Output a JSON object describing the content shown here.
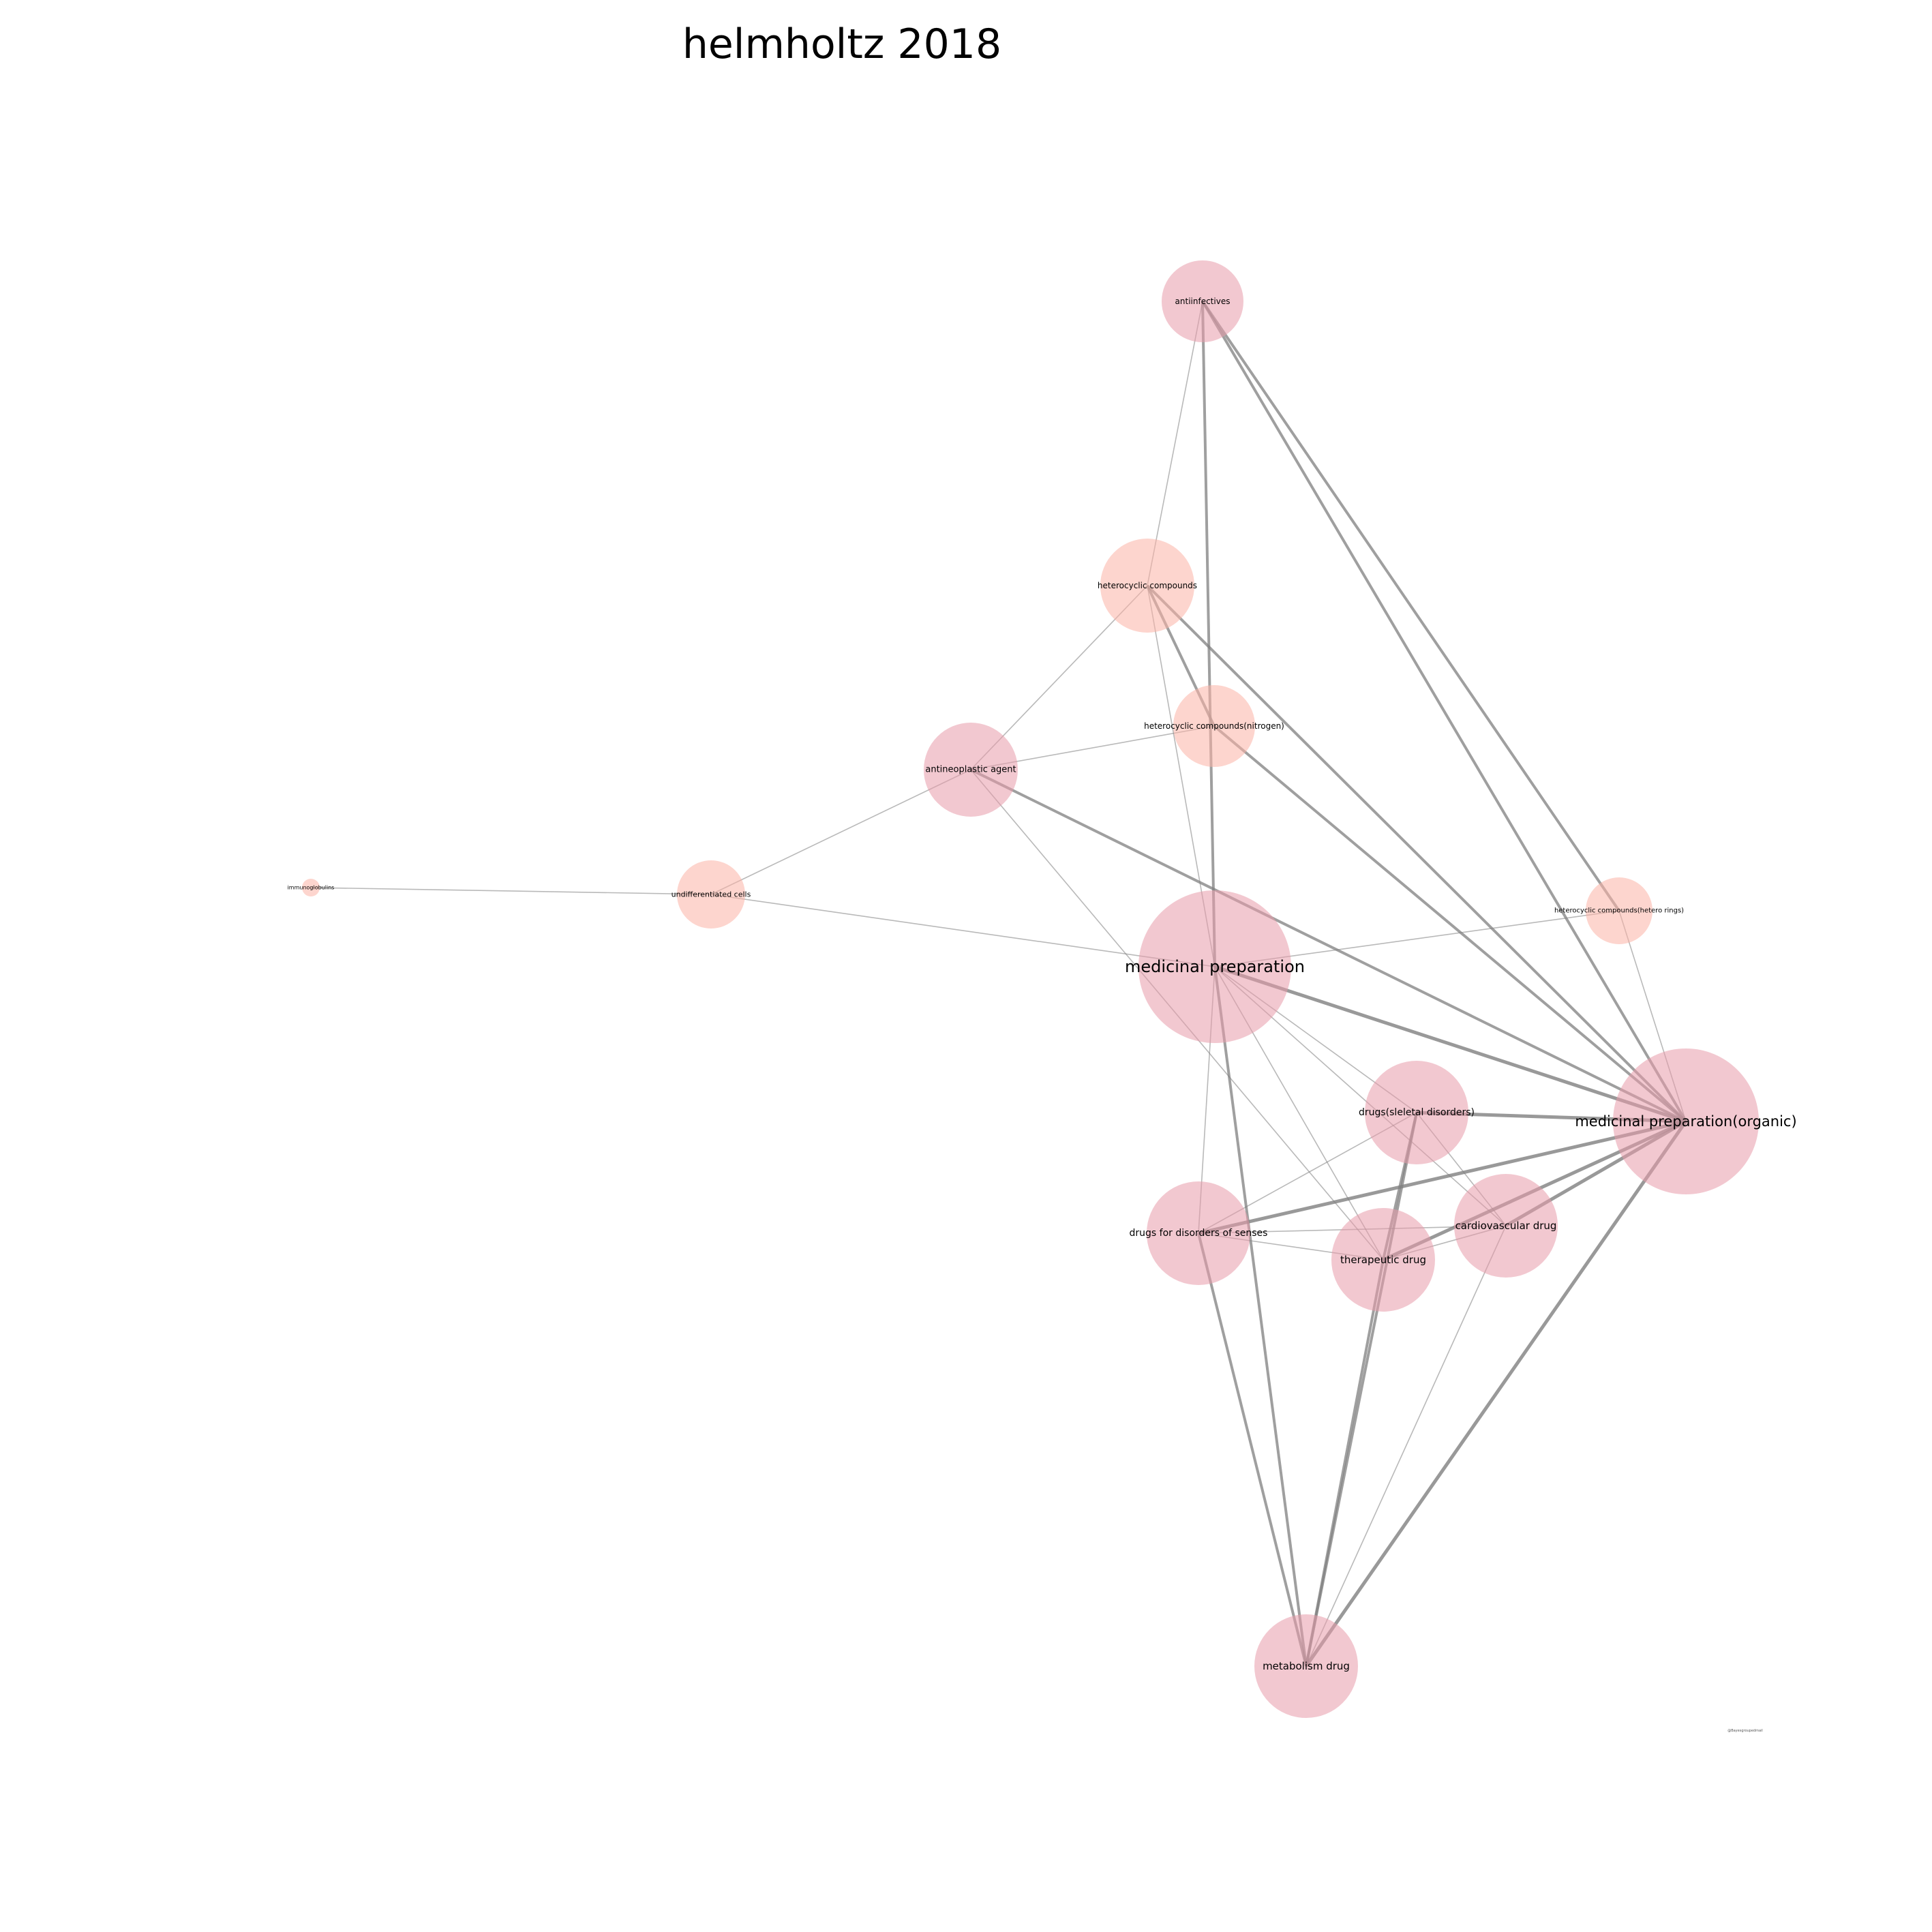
{
  "title": "helmholtz 2018",
  "watermark": "@Bayesgroupedmail",
  "colors": {
    "node_pink": "#e79aaa",
    "node_salmon": "#fcb3a6",
    "edge": "#7f7f7f",
    "background": "#ffffff"
  },
  "nodes": [
    {
      "id": "antiinfectives",
      "label": "antiinfectives",
      "color": "node_pink"
    },
    {
      "id": "heterocyclic_compounds",
      "label": "heterocyclic compounds",
      "color": "node_salmon"
    },
    {
      "id": "heterocyclic_nitrogen",
      "label": "heterocyclic compounds(nitrogen)",
      "color": "node_salmon"
    },
    {
      "id": "antineoplastic",
      "label": "antineoplastic agent",
      "color": "node_pink"
    },
    {
      "id": "immunoglobulins",
      "label": "immunoglobulins",
      "color": "node_salmon"
    },
    {
      "id": "undifferentiated",
      "label": "undifferentiated cells",
      "color": "node_salmon"
    },
    {
      "id": "hetero_rings",
      "label": "heterocyclic compounds(hetero rings)",
      "color": "node_salmon"
    },
    {
      "id": "medicinal",
      "label": "medicinal preparation",
      "color": "node_pink"
    },
    {
      "id": "medicinal_organic",
      "label": "medicinal preparation(organic)",
      "color": "node_pink"
    },
    {
      "id": "skeletal",
      "label": "drugs(sleletal disorders)",
      "color": "node_pink"
    },
    {
      "id": "senses",
      "label": "drugs for disorders of senses",
      "color": "node_pink"
    },
    {
      "id": "cardiovascular",
      "label": "cardiovascular drug",
      "color": "node_pink"
    },
    {
      "id": "therapeutic",
      "label": "therapeutic drug",
      "color": "node_pink"
    },
    {
      "id": "metabolism",
      "label": "metabolism drug",
      "color": "node_pink"
    }
  ],
  "edges": [
    {
      "source": "immunoglobulins",
      "target": "undifferentiated",
      "weight": 1
    },
    {
      "source": "undifferentiated",
      "target": "antineoplastic",
      "weight": 1
    },
    {
      "source": "undifferentiated",
      "target": "medicinal",
      "weight": 1
    },
    {
      "source": "antineoplastic",
      "target": "heterocyclic_compounds",
      "weight": 1
    },
    {
      "source": "antineoplastic",
      "target": "heterocyclic_nitrogen",
      "weight": 1
    },
    {
      "source": "antineoplastic",
      "target": "medicinal_organic",
      "weight": 2
    },
    {
      "source": "antineoplastic",
      "target": "therapeutic",
      "weight": 1
    },
    {
      "source": "antiinfectives",
      "target": "medicinal",
      "weight": 2
    },
    {
      "source": "antiinfectives",
      "target": "medicinal_organic",
      "weight": 2
    },
    {
      "source": "antiinfectives",
      "target": "hetero_rings",
      "weight": 2
    },
    {
      "source": "antiinfectives",
      "target": "heterocyclic_compounds",
      "weight": 1
    },
    {
      "source": "heterocyclic_compounds",
      "target": "heterocyclic_nitrogen",
      "weight": 2
    },
    {
      "source": "heterocyclic_compounds",
      "target": "medicinal",
      "weight": 1
    },
    {
      "source": "heterocyclic_compounds",
      "target": "medicinal_organic",
      "weight": 2
    },
    {
      "source": "heterocyclic_nitrogen",
      "target": "medicinal_organic",
      "weight": 2
    },
    {
      "source": "hetero_rings",
      "target": "medicinal",
      "weight": 1
    },
    {
      "source": "hetero_rings",
      "target": "medicinal_organic",
      "weight": 1
    },
    {
      "source": "medicinal",
      "target": "medicinal_organic",
      "weight": 3
    },
    {
      "source": "medicinal",
      "target": "skeletal",
      "weight": 1
    },
    {
      "source": "medicinal",
      "target": "cardiovascular",
      "weight": 1
    },
    {
      "source": "medicinal",
      "target": "therapeutic",
      "weight": 1
    },
    {
      "source": "medicinal",
      "target": "senses",
      "weight": 1
    },
    {
      "source": "medicinal",
      "target": "metabolism",
      "weight": 2
    },
    {
      "source": "skeletal",
      "target": "medicinal_organic",
      "weight": 3
    },
    {
      "source": "skeletal",
      "target": "senses",
      "weight": 1
    },
    {
      "source": "skeletal",
      "target": "cardiovascular",
      "weight": 1
    },
    {
      "source": "skeletal",
      "target": "therapeutic",
      "weight": 2
    },
    {
      "source": "skeletal",
      "target": "metabolism",
      "weight": 2
    },
    {
      "source": "senses",
      "target": "medicinal_organic",
      "weight": 3
    },
    {
      "source": "senses",
      "target": "cardiovascular",
      "weight": 1
    },
    {
      "source": "senses",
      "target": "therapeutic",
      "weight": 1
    },
    {
      "source": "senses",
      "target": "metabolism",
      "weight": 2
    },
    {
      "source": "therapeutic",
      "target": "medicinal_organic",
      "weight": 3
    },
    {
      "source": "therapeutic",
      "target": "cardiovascular",
      "weight": 1
    },
    {
      "source": "therapeutic",
      "target": "metabolism",
      "weight": 2
    },
    {
      "source": "cardiovascular",
      "target": "medicinal_organic",
      "weight": 3
    },
    {
      "source": "cardiovascular",
      "target": "metabolism",
      "weight": 1
    },
    {
      "source": "metabolism",
      "target": "medicinal_organic",
      "weight": 3
    }
  ]
}
